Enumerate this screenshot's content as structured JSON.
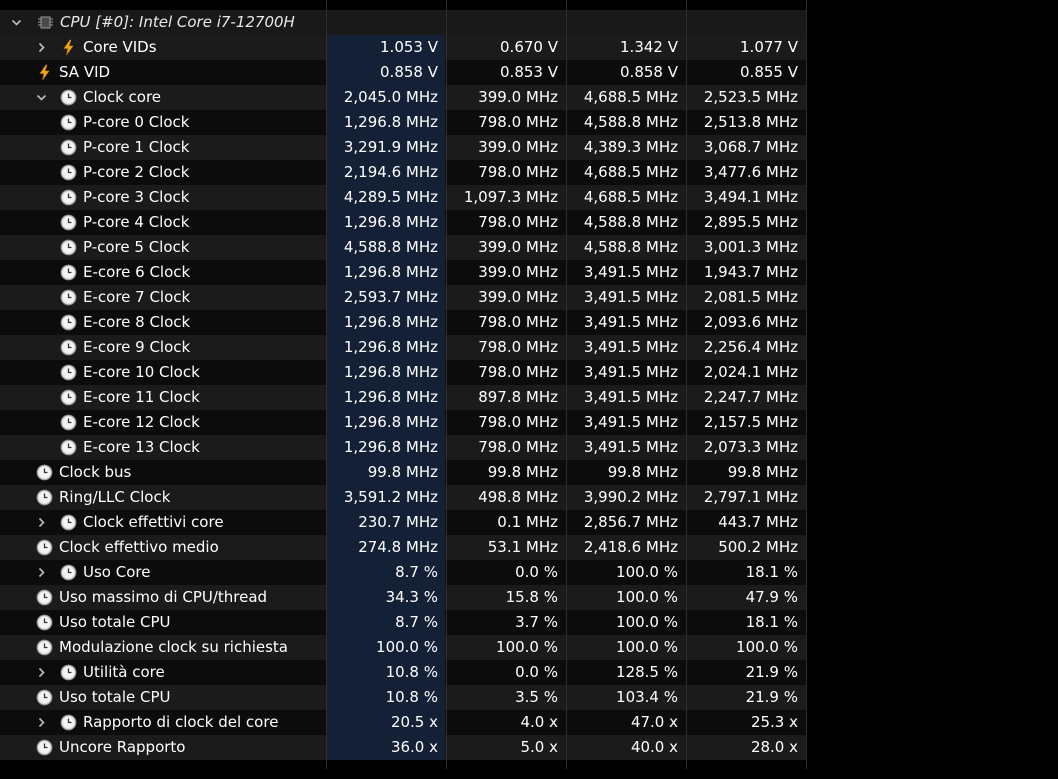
{
  "group": {
    "label": "CPU [#0]: Intel Core i7-12700H",
    "icon": "cpu-chip-icon"
  },
  "rows": [
    {
      "label": "Core VIDs",
      "icon": "bolt-icon",
      "indent": 1,
      "expander": "collapsed",
      "values": [
        "1.053 V",
        "0.670 V",
        "1.342 V",
        "1.077 V"
      ]
    },
    {
      "label": "SA VID",
      "icon": "bolt-icon",
      "indent": 0,
      "expander": null,
      "values": [
        "0.858 V",
        "0.853 V",
        "0.858 V",
        "0.855 V"
      ]
    },
    {
      "label": "Clock core",
      "icon": "clock-icon",
      "indent": 1,
      "expander": "expanded",
      "values": [
        "2,045.0 MHz",
        "399.0 MHz",
        "4,688.5 MHz",
        "2,523.5 MHz"
      ]
    },
    {
      "label": "P-core 0 Clock",
      "icon": "clock-icon",
      "indent": 1,
      "expander": null,
      "values": [
        "1,296.8 MHz",
        "798.0 MHz",
        "4,588.8 MHz",
        "2,513.8 MHz"
      ]
    },
    {
      "label": "P-core 1 Clock",
      "icon": "clock-icon",
      "indent": 1,
      "expander": null,
      "values": [
        "3,291.9 MHz",
        "399.0 MHz",
        "4,389.3 MHz",
        "3,068.7 MHz"
      ]
    },
    {
      "label": "P-core 2 Clock",
      "icon": "clock-icon",
      "indent": 1,
      "expander": null,
      "values": [
        "2,194.6 MHz",
        "798.0 MHz",
        "4,688.5 MHz",
        "3,477.6 MHz"
      ]
    },
    {
      "label": "P-core 3 Clock",
      "icon": "clock-icon",
      "indent": 1,
      "expander": null,
      "values": [
        "4,289.5 MHz",
        "1,097.3 MHz",
        "4,688.5 MHz",
        "3,494.1 MHz"
      ]
    },
    {
      "label": "P-core 4 Clock",
      "icon": "clock-icon",
      "indent": 1,
      "expander": null,
      "values": [
        "1,296.8 MHz",
        "798.0 MHz",
        "4,588.8 MHz",
        "2,895.5 MHz"
      ]
    },
    {
      "label": "P-core 5 Clock",
      "icon": "clock-icon",
      "indent": 1,
      "expander": null,
      "values": [
        "4,588.8 MHz",
        "399.0 MHz",
        "4,588.8 MHz",
        "3,001.3 MHz"
      ]
    },
    {
      "label": "E-core 6 Clock",
      "icon": "clock-icon",
      "indent": 1,
      "expander": null,
      "values": [
        "1,296.8 MHz",
        "399.0 MHz",
        "3,491.5 MHz",
        "1,943.7 MHz"
      ]
    },
    {
      "label": "E-core 7 Clock",
      "icon": "clock-icon",
      "indent": 1,
      "expander": null,
      "values": [
        "2,593.7 MHz",
        "399.0 MHz",
        "3,491.5 MHz",
        "2,081.5 MHz"
      ]
    },
    {
      "label": "E-core 8 Clock",
      "icon": "clock-icon",
      "indent": 1,
      "expander": null,
      "values": [
        "1,296.8 MHz",
        "798.0 MHz",
        "3,491.5 MHz",
        "2,093.6 MHz"
      ]
    },
    {
      "label": "E-core 9 Clock",
      "icon": "clock-icon",
      "indent": 1,
      "expander": null,
      "values": [
        "1,296.8 MHz",
        "798.0 MHz",
        "3,491.5 MHz",
        "2,256.4 MHz"
      ]
    },
    {
      "label": "E-core 10 Clock",
      "icon": "clock-icon",
      "indent": 1,
      "expander": null,
      "values": [
        "1,296.8 MHz",
        "798.0 MHz",
        "3,491.5 MHz",
        "2,024.1 MHz"
      ]
    },
    {
      "label": "E-core 11 Clock",
      "icon": "clock-icon",
      "indent": 1,
      "expander": null,
      "values": [
        "1,296.8 MHz",
        "897.8 MHz",
        "3,491.5 MHz",
        "2,247.7 MHz"
      ]
    },
    {
      "label": "E-core 12 Clock",
      "icon": "clock-icon",
      "indent": 1,
      "expander": null,
      "values": [
        "1,296.8 MHz",
        "798.0 MHz",
        "3,491.5 MHz",
        "2,157.5 MHz"
      ]
    },
    {
      "label": "E-core 13 Clock",
      "icon": "clock-icon",
      "indent": 1,
      "expander": null,
      "values": [
        "1,296.8 MHz",
        "798.0 MHz",
        "3,491.5 MHz",
        "2,073.3 MHz"
      ]
    },
    {
      "label": "Clock bus",
      "icon": "clock-icon",
      "indent": 0,
      "expander": null,
      "values": [
        "99.8 MHz",
        "99.8 MHz",
        "99.8 MHz",
        "99.8 MHz"
      ]
    },
    {
      "label": "Ring/LLC Clock",
      "icon": "clock-icon",
      "indent": 0,
      "expander": null,
      "values": [
        "3,591.2 MHz",
        "498.8 MHz",
        "3,990.2 MHz",
        "2,797.1 MHz"
      ]
    },
    {
      "label": "Clock effettivi core",
      "icon": "clock-icon",
      "indent": 1,
      "expander": "collapsed",
      "values": [
        "230.7 MHz",
        "0.1 MHz",
        "2,856.7 MHz",
        "443.7 MHz"
      ]
    },
    {
      "label": "Clock effettivo medio",
      "icon": "clock-icon",
      "indent": 0,
      "expander": null,
      "values": [
        "274.8 MHz",
        "53.1 MHz",
        "2,418.6 MHz",
        "500.2 MHz"
      ]
    },
    {
      "label": "Uso Core",
      "icon": "clock-icon",
      "indent": 1,
      "expander": "collapsed",
      "values": [
        "8.7 %",
        "0.0 %",
        "100.0 %",
        "18.1 %"
      ]
    },
    {
      "label": "Uso massimo di CPU/thread",
      "icon": "clock-icon",
      "indent": 0,
      "expander": null,
      "values": [
        "34.3 %",
        "15.8 %",
        "100.0 %",
        "47.9 %"
      ]
    },
    {
      "label": "Uso totale CPU",
      "icon": "clock-icon",
      "indent": 0,
      "expander": null,
      "values": [
        "8.7 %",
        "3.7 %",
        "100.0 %",
        "18.1 %"
      ]
    },
    {
      "label": "Modulazione clock su richiesta",
      "icon": "clock-icon",
      "indent": 0,
      "expander": null,
      "values": [
        "100.0 %",
        "100.0 %",
        "100.0 %",
        "100.0 %"
      ]
    },
    {
      "label": "Utilità core",
      "icon": "clock-icon",
      "indent": 1,
      "expander": "collapsed",
      "values": [
        "10.8 %",
        "0.0 %",
        "128.5 %",
        "21.9 %"
      ]
    },
    {
      "label": "Uso totale CPU",
      "icon": "clock-icon",
      "indent": 0,
      "expander": null,
      "values": [
        "10.8 %",
        "3.5 %",
        "103.4 %",
        "21.9 %"
      ]
    },
    {
      "label": "Rapporto di clock del core",
      "icon": "clock-icon",
      "indent": 1,
      "expander": "collapsed",
      "values": [
        "20.5 x",
        "4.0 x",
        "47.0 x",
        "25.3 x"
      ]
    },
    {
      "label": "Uncore Rapporto",
      "icon": "clock-icon",
      "indent": 0,
      "expander": null,
      "values": [
        "36.0 x",
        "5.0 x",
        "40.0 x",
        "28.0 x"
      ]
    }
  ],
  "colors": {
    "highlight": "#132036",
    "bolt": "#f0a71c",
    "clock_face": "#d8d8d8"
  }
}
